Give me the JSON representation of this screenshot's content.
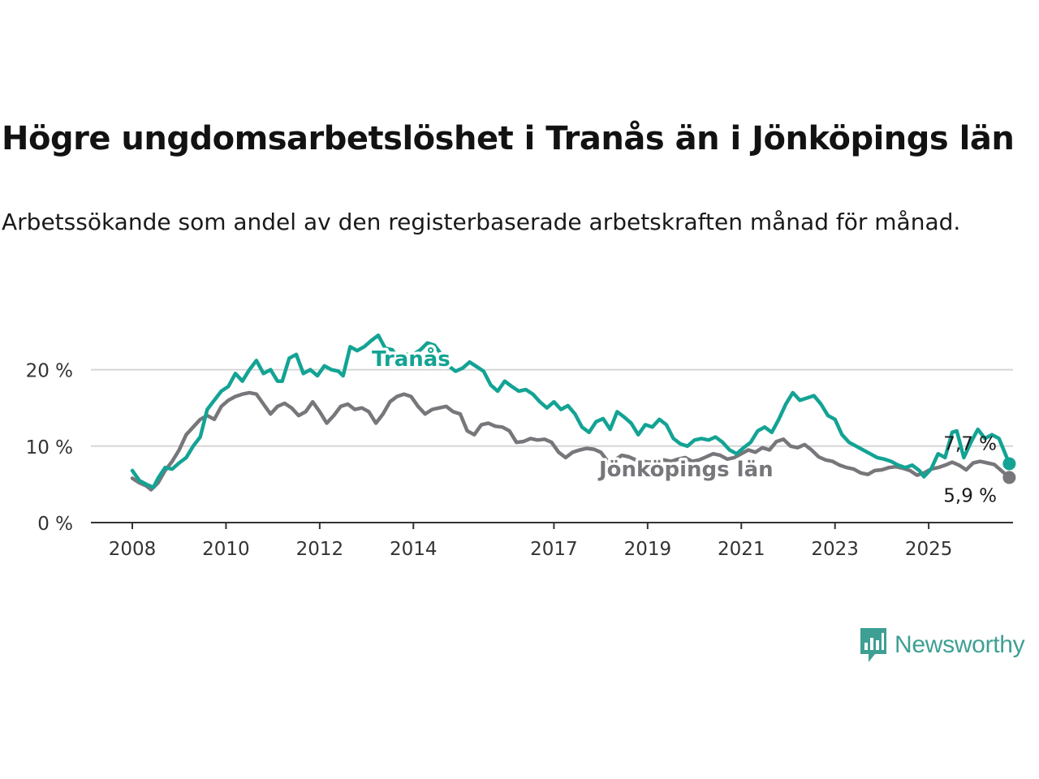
{
  "title": "Högre ungdomsarbetslöshet i Tranås än i Jönköpings län",
  "subtitle": "Arbetssökande som andel av den registerbaserade arbetskraften månad för månad.",
  "logo": {
    "text": "Newsworthy",
    "icon": "newsworthy-bar-chart-icon"
  },
  "colors": {
    "tranas": "#13a394",
    "lan": "#77777b",
    "grid": "#d6d6d6",
    "axis": "#333333"
  },
  "chart_data": {
    "type": "line",
    "ylim": [
      0,
      26
    ],
    "y_ticks": [
      0,
      10,
      20
    ],
    "y_tick_labels": [
      "0 %",
      "10 %",
      "20 %"
    ],
    "x_ticks": [
      2008,
      2010,
      2012,
      2014,
      2017,
      2019,
      2021,
      2023,
      2025
    ],
    "x_tick_labels": [
      "2008",
      "2010",
      "2012",
      "2014",
      "2017",
      "2019",
      "2021",
      "2023",
      "2025"
    ],
    "grid": "horizontal",
    "series": [
      {
        "name": "Tranås",
        "end_label": "7,7 %",
        "color": "#13a394",
        "points": [
          [
            2008.0,
            6.8
          ],
          [
            2008.15,
            5.5
          ],
          [
            2008.3,
            5.0
          ],
          [
            2008.45,
            4.6
          ],
          [
            2008.55,
            5.8
          ],
          [
            2008.7,
            7.2
          ],
          [
            2008.85,
            7.0
          ],
          [
            2009.0,
            7.8
          ],
          [
            2009.15,
            8.5
          ],
          [
            2009.3,
            10.0
          ],
          [
            2009.45,
            11.2
          ],
          [
            2009.6,
            14.8
          ],
          [
            2009.75,
            16.0
          ],
          [
            2009.9,
            17.2
          ],
          [
            2010.05,
            17.8
          ],
          [
            2010.2,
            19.5
          ],
          [
            2010.35,
            18.5
          ],
          [
            2010.5,
            20.0
          ],
          [
            2010.65,
            21.2
          ],
          [
            2010.8,
            19.5
          ],
          [
            2010.95,
            20.0
          ],
          [
            2011.1,
            18.5
          ],
          [
            2011.2,
            18.5
          ],
          [
            2011.35,
            21.5
          ],
          [
            2011.5,
            22.0
          ],
          [
            2011.65,
            19.5
          ],
          [
            2011.8,
            20.0
          ],
          [
            2011.95,
            19.2
          ],
          [
            2012.1,
            20.5
          ],
          [
            2012.25,
            20.0
          ],
          [
            2012.4,
            19.8
          ],
          [
            2012.5,
            19.2
          ],
          [
            2012.65,
            23.0
          ],
          [
            2012.8,
            22.5
          ],
          [
            2012.95,
            23.0
          ],
          [
            2013.1,
            23.8
          ],
          [
            2013.25,
            24.5
          ],
          [
            2013.4,
            22.8
          ],
          [
            2013.55,
            22.6
          ],
          [
            2013.7,
            21.0
          ],
          [
            2013.85,
            22.0
          ],
          [
            2014.0,
            22.0
          ],
          [
            2014.15,
            22.6
          ],
          [
            2014.3,
            23.5
          ],
          [
            2014.45,
            23.2
          ],
          [
            2014.6,
            22.0
          ],
          [
            2014.75,
            20.5
          ],
          [
            2014.9,
            19.8
          ],
          [
            2015.05,
            20.2
          ],
          [
            2015.2,
            21.0
          ],
          [
            2015.35,
            20.4
          ],
          [
            2015.5,
            19.8
          ],
          [
            2015.65,
            18.0
          ],
          [
            2015.8,
            17.2
          ],
          [
            2015.95,
            18.5
          ],
          [
            2016.1,
            17.8
          ],
          [
            2016.25,
            17.2
          ],
          [
            2016.4,
            17.4
          ],
          [
            2016.55,
            16.8
          ],
          [
            2016.7,
            15.8
          ],
          [
            2016.85,
            15.0
          ],
          [
            2017.0,
            15.8
          ],
          [
            2017.15,
            14.8
          ],
          [
            2017.3,
            15.3
          ],
          [
            2017.45,
            14.2
          ],
          [
            2017.6,
            12.5
          ],
          [
            2017.75,
            11.8
          ],
          [
            2017.9,
            13.2
          ],
          [
            2018.05,
            13.6
          ],
          [
            2018.2,
            12.2
          ],
          [
            2018.35,
            14.5
          ],
          [
            2018.5,
            13.8
          ],
          [
            2018.65,
            13.0
          ],
          [
            2018.8,
            11.5
          ],
          [
            2018.95,
            12.8
          ],
          [
            2019.1,
            12.5
          ],
          [
            2019.25,
            13.5
          ],
          [
            2019.4,
            12.8
          ],
          [
            2019.55,
            11.0
          ],
          [
            2019.7,
            10.3
          ],
          [
            2019.85,
            10.0
          ],
          [
            2020.0,
            10.8
          ],
          [
            2020.15,
            11.0
          ],
          [
            2020.3,
            10.8
          ],
          [
            2020.45,
            11.2
          ],
          [
            2020.6,
            10.5
          ],
          [
            2020.75,
            9.5
          ],
          [
            2020.9,
            9.0
          ],
          [
            2021.05,
            9.8
          ],
          [
            2021.2,
            10.5
          ],
          [
            2021.35,
            12.0
          ],
          [
            2021.5,
            12.5
          ],
          [
            2021.65,
            11.8
          ],
          [
            2021.8,
            13.5
          ],
          [
            2021.95,
            15.5
          ],
          [
            2022.1,
            17.0
          ],
          [
            2022.25,
            16.0
          ],
          [
            2022.4,
            16.3
          ],
          [
            2022.55,
            16.6
          ],
          [
            2022.7,
            15.5
          ],
          [
            2022.85,
            14.0
          ],
          [
            2023.0,
            13.5
          ],
          [
            2023.15,
            11.5
          ],
          [
            2023.3,
            10.5
          ],
          [
            2023.45,
            10.0
          ],
          [
            2023.6,
            9.5
          ],
          [
            2023.75,
            9.0
          ],
          [
            2023.9,
            8.5
          ],
          [
            2024.05,
            8.3
          ],
          [
            2024.2,
            8.0
          ],
          [
            2024.35,
            7.5
          ],
          [
            2024.5,
            7.2
          ],
          [
            2024.65,
            7.5
          ],
          [
            2024.8,
            6.8
          ],
          [
            2024.9,
            6.0
          ],
          [
            2025.05,
            7.0
          ],
          [
            2025.2,
            9.0
          ],
          [
            2025.35,
            8.5
          ],
          [
            2025.5,
            11.8
          ],
          [
            2025.6,
            12.0
          ],
          [
            2025.75,
            8.5
          ],
          [
            2025.9,
            10.5
          ],
          [
            2026.05,
            12.2
          ],
          [
            2026.2,
            11.0
          ],
          [
            2026.35,
            11.5
          ],
          [
            2026.5,
            11.0
          ],
          [
            2026.6,
            9.5
          ],
          [
            2026.72,
            7.7
          ]
        ]
      },
      {
        "name": "Jönköpings län",
        "end_label": "5,9 %",
        "color": "#77777b",
        "points": [
          [
            2008.0,
            5.8
          ],
          [
            2008.15,
            5.2
          ],
          [
            2008.3,
            4.8
          ],
          [
            2008.4,
            4.3
          ],
          [
            2008.55,
            5.2
          ],
          [
            2008.7,
            6.8
          ],
          [
            2008.85,
            8.0
          ],
          [
            2009.0,
            9.5
          ],
          [
            2009.15,
            11.5
          ],
          [
            2009.3,
            12.5
          ],
          [
            2009.45,
            13.5
          ],
          [
            2009.6,
            14.0
          ],
          [
            2009.75,
            13.5
          ],
          [
            2009.9,
            15.2
          ],
          [
            2010.05,
            16.0
          ],
          [
            2010.2,
            16.5
          ],
          [
            2010.35,
            16.8
          ],
          [
            2010.5,
            17.0
          ],
          [
            2010.65,
            16.8
          ],
          [
            2010.8,
            15.5
          ],
          [
            2010.95,
            14.2
          ],
          [
            2011.1,
            15.2
          ],
          [
            2011.25,
            15.6
          ],
          [
            2011.4,
            15.0
          ],
          [
            2011.55,
            14.0
          ],
          [
            2011.7,
            14.5
          ],
          [
            2011.85,
            15.8
          ],
          [
            2012.0,
            14.5
          ],
          [
            2012.15,
            13.0
          ],
          [
            2012.3,
            14.0
          ],
          [
            2012.45,
            15.2
          ],
          [
            2012.6,
            15.5
          ],
          [
            2012.75,
            14.8
          ],
          [
            2012.9,
            15.0
          ],
          [
            2013.05,
            14.5
          ],
          [
            2013.2,
            13.0
          ],
          [
            2013.35,
            14.2
          ],
          [
            2013.5,
            15.8
          ],
          [
            2013.65,
            16.5
          ],
          [
            2013.8,
            16.8
          ],
          [
            2013.95,
            16.5
          ],
          [
            2014.1,
            15.2
          ],
          [
            2014.25,
            14.2
          ],
          [
            2014.4,
            14.8
          ],
          [
            2014.55,
            15.0
          ],
          [
            2014.7,
            15.2
          ],
          [
            2014.85,
            14.5
          ],
          [
            2015.0,
            14.2
          ],
          [
            2015.15,
            12.0
          ],
          [
            2015.3,
            11.5
          ],
          [
            2015.45,
            12.8
          ],
          [
            2015.6,
            13.0
          ],
          [
            2015.75,
            12.6
          ],
          [
            2015.9,
            12.5
          ],
          [
            2016.05,
            12.0
          ],
          [
            2016.2,
            10.5
          ],
          [
            2016.35,
            10.6
          ],
          [
            2016.5,
            11.0
          ],
          [
            2016.65,
            10.8
          ],
          [
            2016.8,
            10.9
          ],
          [
            2016.95,
            10.5
          ],
          [
            2017.1,
            9.2
          ],
          [
            2017.25,
            8.5
          ],
          [
            2017.4,
            9.2
          ],
          [
            2017.55,
            9.5
          ],
          [
            2017.7,
            9.7
          ],
          [
            2017.85,
            9.6
          ],
          [
            2018.0,
            9.2
          ],
          [
            2018.15,
            8.0
          ],
          [
            2018.3,
            8.2
          ],
          [
            2018.45,
            8.8
          ],
          [
            2018.6,
            8.6
          ],
          [
            2018.75,
            8.2
          ],
          [
            2018.9,
            8.0
          ],
          [
            2019.05,
            7.9
          ],
          [
            2019.2,
            8.0
          ],
          [
            2019.35,
            8.2
          ],
          [
            2019.5,
            8.0
          ],
          [
            2019.65,
            8.3
          ],
          [
            2019.8,
            8.5
          ],
          [
            2019.95,
            8.0
          ],
          [
            2020.1,
            8.2
          ],
          [
            2020.25,
            8.6
          ],
          [
            2020.4,
            9.0
          ],
          [
            2020.55,
            8.8
          ],
          [
            2020.7,
            8.3
          ],
          [
            2020.85,
            8.5
          ],
          [
            2021.0,
            9.0
          ],
          [
            2021.15,
            9.5
          ],
          [
            2021.3,
            9.2
          ],
          [
            2021.45,
            9.8
          ],
          [
            2021.6,
            9.5
          ],
          [
            2021.75,
            10.6
          ],
          [
            2021.9,
            10.9
          ],
          [
            2022.05,
            10.0
          ],
          [
            2022.2,
            9.8
          ],
          [
            2022.35,
            10.2
          ],
          [
            2022.5,
            9.5
          ],
          [
            2022.65,
            8.6
          ],
          [
            2022.8,
            8.2
          ],
          [
            2022.95,
            8.0
          ],
          [
            2023.1,
            7.5
          ],
          [
            2023.25,
            7.2
          ],
          [
            2023.4,
            7.0
          ],
          [
            2023.55,
            6.5
          ],
          [
            2023.7,
            6.3
          ],
          [
            2023.85,
            6.8
          ],
          [
            2024.0,
            6.9
          ],
          [
            2024.15,
            7.2
          ],
          [
            2024.3,
            7.3
          ],
          [
            2024.45,
            7.1
          ],
          [
            2024.6,
            6.8
          ],
          [
            2024.75,
            6.2
          ],
          [
            2024.9,
            6.5
          ],
          [
            2025.05,
            7.0
          ],
          [
            2025.2,
            7.2
          ],
          [
            2025.35,
            7.5
          ],
          [
            2025.5,
            7.9
          ],
          [
            2025.65,
            7.5
          ],
          [
            2025.8,
            6.9
          ],
          [
            2025.95,
            7.8
          ],
          [
            2026.1,
            8.0
          ],
          [
            2026.25,
            7.8
          ],
          [
            2026.4,
            7.6
          ],
          [
            2026.55,
            6.8
          ],
          [
            2026.72,
            5.9
          ]
        ]
      }
    ]
  }
}
